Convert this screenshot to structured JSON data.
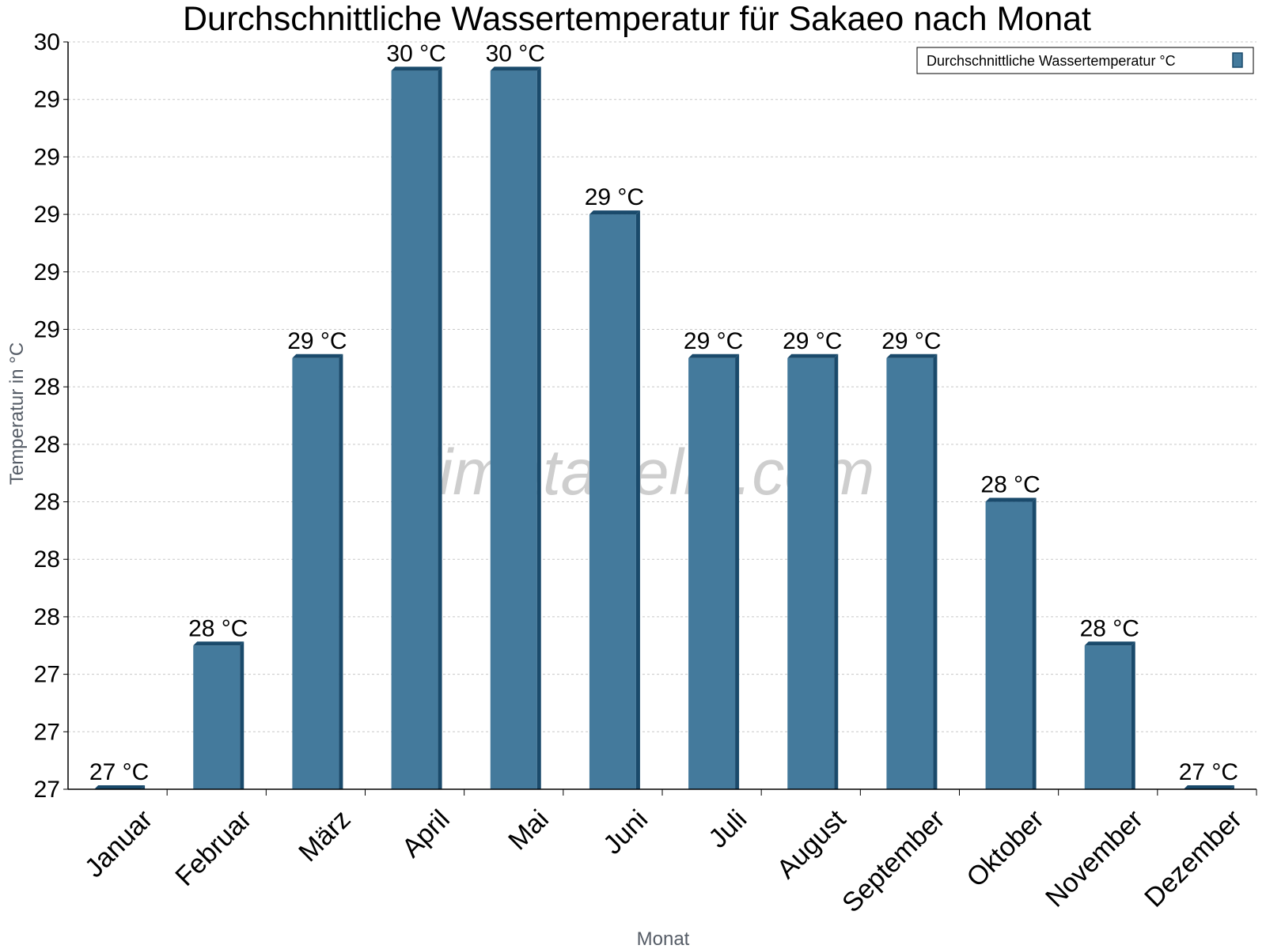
{
  "chart_data": {
    "type": "bar",
    "title": "Durchschnittliche Wassertemperatur für Sakaeo nach Monat",
    "xlabel": "Monat",
    "ylabel": "Temperatur in °C",
    "categories": [
      "Januar",
      "Februar",
      "März",
      "April",
      "Mai",
      "Juni",
      "Juli",
      "August",
      "September",
      "Oktober",
      "November",
      "Dezember"
    ],
    "series": [
      {
        "name": "Durchschnittliche Wassertemperatur °C",
        "values": [
          27.0,
          27.5,
          28.5,
          29.5,
          29.5,
          29.0,
          28.5,
          28.5,
          28.5,
          28.0,
          27.5,
          27.0
        ],
        "labels": [
          "27 °C",
          "28 °C",
          "29 °C",
          "30 °C",
          "30 °C",
          "29 °C",
          "29 °C",
          "29 °C",
          "29 °C",
          "28 °C",
          "28 °C",
          "27 °C"
        ],
        "color": "#447a9c",
        "edge_color": "#1a4a6b"
      }
    ],
    "ylim": [
      27,
      29.6
    ],
    "yticks": [
      {
        "value": 27.0,
        "label": "27"
      },
      {
        "value": 27.2,
        "label": "27"
      },
      {
        "value": 27.4,
        "label": "27"
      },
      {
        "value": 27.6,
        "label": "28"
      },
      {
        "value": 27.8,
        "label": "28"
      },
      {
        "value": 28.0,
        "label": "28"
      },
      {
        "value": 28.2,
        "label": "28"
      },
      {
        "value": 28.4,
        "label": "28"
      },
      {
        "value": 28.6,
        "label": "29"
      },
      {
        "value": 28.8,
        "label": "29"
      },
      {
        "value": 29.0,
        "label": "29"
      },
      {
        "value": 29.2,
        "label": "29"
      },
      {
        "value": 29.4,
        "label": "29"
      },
      {
        "value": 29.6,
        "label": "30"
      }
    ],
    "grid": true,
    "legend_position": "top-right",
    "watermark": "klimatabelle.com"
  }
}
